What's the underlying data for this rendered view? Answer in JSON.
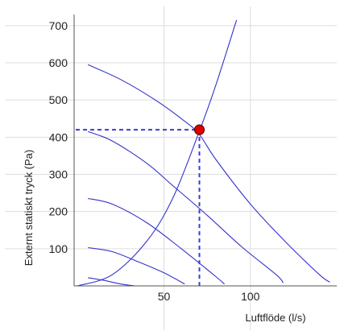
{
  "chart_data": {
    "type": "line",
    "title": "",
    "xlabel": "Luftflöde (l/s)",
    "ylabel": "Externt statiskt tryck (Pa)",
    "xlim": [
      -2,
      150
    ],
    "ylim": [
      0,
      730
    ],
    "x_ticks": [
      50,
      100
    ],
    "y_ticks": [
      100,
      200,
      300,
      400,
      500,
      600,
      700
    ],
    "grid": true,
    "series": [
      {
        "role": "fan-curve",
        "points": [
          [
            6,
            595
          ],
          [
            25,
            555
          ],
          [
            45,
            500
          ],
          [
            60,
            450
          ],
          [
            70,
            410
          ],
          [
            80,
            340
          ],
          [
            100,
            220
          ],
          [
            120,
            120
          ],
          [
            140,
            30
          ],
          [
            146,
            10
          ]
        ]
      },
      {
        "role": "fan-curve",
        "points": [
          [
            6,
            415
          ],
          [
            20,
            390
          ],
          [
            40,
            330
          ],
          [
            55,
            270
          ],
          [
            75,
            190
          ],
          [
            95,
            105
          ],
          [
            115,
            30
          ],
          [
            119,
            8
          ]
        ]
      },
      {
        "role": "fan-curve",
        "points": [
          [
            6,
            235
          ],
          [
            20,
            220
          ],
          [
            40,
            170
          ],
          [
            60,
            100
          ],
          [
            80,
            25
          ],
          [
            85,
            5
          ]
        ]
      },
      {
        "role": "fan-curve",
        "points": [
          [
            6,
            103
          ],
          [
            20,
            92
          ],
          [
            35,
            65
          ],
          [
            50,
            35
          ],
          [
            62,
            5
          ]
        ]
      },
      {
        "role": "fan-curve",
        "points": [
          [
            6,
            22
          ],
          [
            15,
            15
          ],
          [
            25,
            5
          ],
          [
            33,
            0
          ]
        ]
      },
      {
        "role": "system-curve",
        "points": [
          [
            0,
            0
          ],
          [
            20,
            30
          ],
          [
            40,
            120
          ],
          [
            55,
            235
          ],
          [
            70,
            410
          ],
          [
            80,
            540
          ],
          [
            92,
            715
          ]
        ]
      }
    ],
    "operating_point": {
      "x": 70.5,
      "y": 420
    },
    "colors": {
      "curve": "#3333cc",
      "guide": "#3a3ad6",
      "point_fill": "#dd0000",
      "point_stroke": "#660000",
      "grid": "#dddddd",
      "axis": "#555555"
    }
  }
}
